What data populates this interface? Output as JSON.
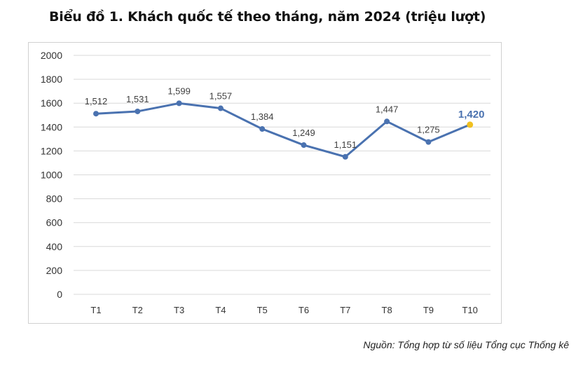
{
  "title": "Biểu đồ 1. Khách quốc tế theo tháng, năm 2024 (triệu lượt)",
  "source": "Nguồn: Tổng hợp từ số liệu Tổng cục Thống kê",
  "chart_data": {
    "type": "line",
    "title": "Biểu đồ 1. Khách quốc tế theo tháng, năm 2024 (triệu lượt)",
    "xlabel": "",
    "ylabel": "",
    "categories": [
      "T1",
      "T2",
      "T3",
      "T4",
      "T5",
      "T6",
      "T7",
      "T8",
      "T9",
      "T10"
    ],
    "values": [
      1512,
      1531,
      1599,
      1557,
      1384,
      1249,
      1151,
      1447,
      1275,
      1420
    ],
    "data_labels": [
      "1,512",
      "1,531",
      "1,599",
      "1,557",
      "1,384",
      "1,249",
      "1,151",
      "1,447",
      "1,275",
      "1,420"
    ],
    "ylim": [
      0,
      2000
    ],
    "yticks": [
      "0",
      "200",
      "400",
      "600",
      "800",
      "1000",
      "1200",
      "1400",
      "1600",
      "1800",
      "2000"
    ],
    "grid": true,
    "legend": "none",
    "highlight_index": 9,
    "colors": {
      "line": "#4a72b0",
      "highlight_point": "#f0c020",
      "highlight_label": "#4a72b0",
      "grid": "#d9d9d9",
      "label": "#404040"
    }
  }
}
